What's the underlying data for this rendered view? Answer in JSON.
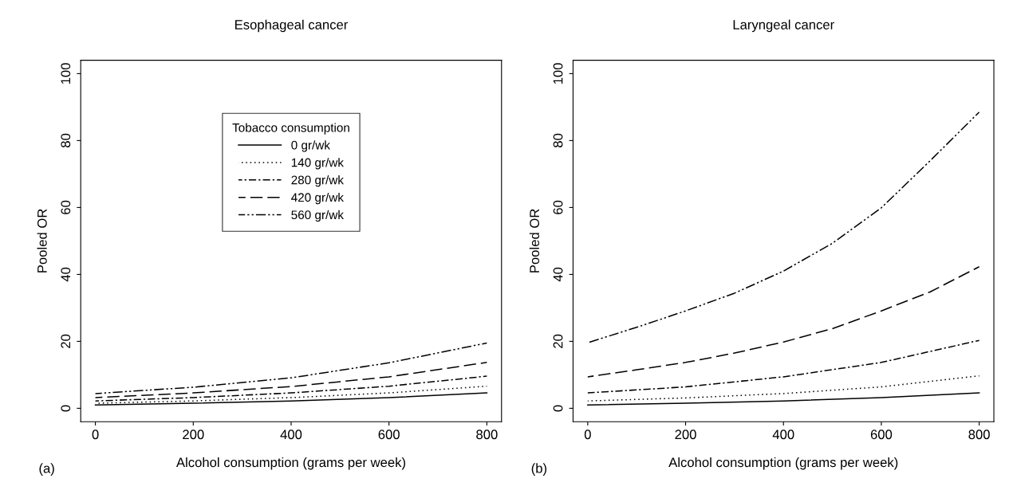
{
  "chart_data": [
    {
      "type": "line",
      "title": "Esophageal cancer",
      "xlabel": "Alcohol consumption (grams per week)",
      "ylabel": "Pooled OR",
      "legend_title": "Tobacco consumption",
      "legend": "top",
      "annotations": [
        "(a)"
      ],
      "grid": false,
      "marker": "none",
      "xlim": [
        -30,
        830
      ],
      "xticks": [
        0,
        200,
        400,
        600,
        800
      ],
      "ylim": [
        -4,
        104
      ],
      "yticks": [
        0,
        20,
        40,
        60,
        80,
        100
      ],
      "series": [
        {
          "name": "0 gr/wk",
          "color": "#000000",
          "line_style": "solid",
          "x": [
            0,
            200,
            400,
            600,
            800
          ],
          "values": [
            1.0,
            1.5,
            2.2,
            3.2,
            4.6
          ]
        },
        {
          "name": "140 gr/wk",
          "color": "#000000",
          "line_style": "dotted",
          "x": [
            0,
            200,
            400,
            600,
            800
          ],
          "values": [
            1.5,
            2.2,
            3.2,
            4.6,
            6.6
          ]
        },
        {
          "name": "280 gr/wk",
          "color": "#000000",
          "line_style": "dashdot",
          "x": [
            0,
            200,
            400,
            600,
            800
          ],
          "values": [
            2.2,
            3.2,
            4.6,
            6.6,
            9.6
          ]
        },
        {
          "name": "420 gr/wk",
          "color": "#000000",
          "line_style": "dashed",
          "x": [
            0,
            200,
            400,
            600,
            800
          ],
          "values": [
            3.2,
            4.6,
            6.5,
            9.4,
            13.7
          ]
        },
        {
          "name": "560 gr/wk",
          "color": "#000000",
          "line_style": "dashdotdot",
          "x": [
            0,
            200,
            400,
            600,
            800
          ],
          "values": [
            4.4,
            6.3,
            9.1,
            13.6,
            19.5
          ]
        }
      ]
    },
    {
      "type": "line",
      "title": "Laryngeal cancer",
      "xlabel": "Alcohol consumption (grams per week)",
      "ylabel": "Pooled OR",
      "annotations": [
        "(b)"
      ],
      "grid": false,
      "marker": "none",
      "xlim": [
        -30,
        830
      ],
      "xticks": [
        0,
        200,
        400,
        600,
        800
      ],
      "ylim": [
        -4,
        104
      ],
      "yticks": [
        0,
        20,
        40,
        60,
        80,
        100
      ],
      "series": [
        {
          "color": "#000000",
          "line_style": "solid",
          "x": [
            0,
            200,
            400,
            600,
            800
          ],
          "values": [
            1.0,
            1.5,
            2.2,
            3.2,
            4.6
          ]
        },
        {
          "color": "#000000",
          "line_style": "dotted",
          "x": [
            0,
            200,
            400,
            600,
            800
          ],
          "values": [
            2.2,
            3.1,
            4.4,
            6.4,
            9.7
          ]
        },
        {
          "color": "#000000",
          "line_style": "dashdot",
          "x": [
            0,
            200,
            400,
            600,
            800
          ],
          "values": [
            4.6,
            6.4,
            9.4,
            13.7,
            20.3
          ]
        },
        {
          "color": "#000000",
          "line_style": "dashed",
          "x": [
            0,
            100,
            200,
            300,
            400,
            500,
            600,
            700,
            800
          ],
          "values": [
            9.4,
            11.5,
            13.7,
            16.5,
            19.8,
            23.8,
            29.1,
            34.8,
            42.3
          ]
        },
        {
          "color": "#000000",
          "line_style": "dashdotdot",
          "x": [
            0,
            100,
            200,
            300,
            400,
            500,
            600,
            700,
            800
          ],
          "values": [
            19.6,
            24.2,
            29.1,
            34.4,
            41.0,
            49.3,
            59.9,
            74.0,
            88.5
          ]
        }
      ]
    }
  ]
}
